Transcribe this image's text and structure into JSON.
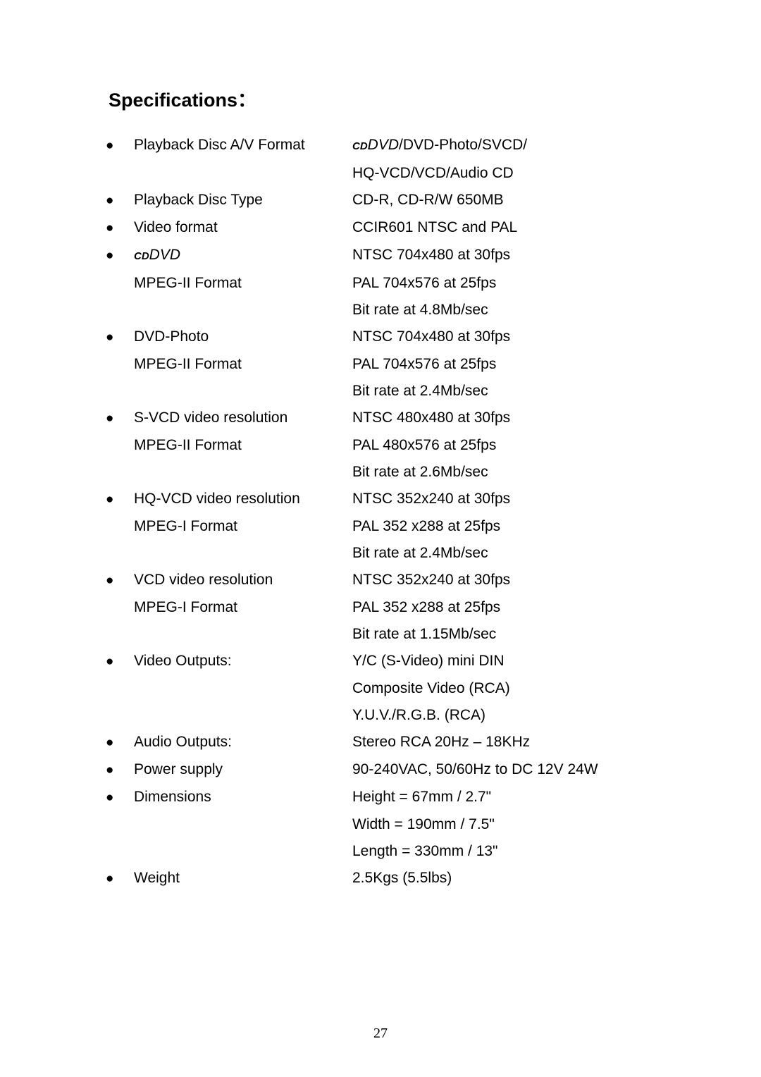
{
  "title": "Specifications：",
  "bullet_char": "●",
  "rows": [
    {
      "b": true,
      "l_html": " Playback Disc A/V Format",
      "r_html": "<span class='cd-small'>CD</span><span class='dvd-italic'>DVD</span>/DVD-Photo/SVCD/"
    },
    {
      "b": false,
      "l_html": "",
      "r_html": "HQ-VCD/VCD/Audio CD"
    },
    {
      "b": true,
      "l_html": " Playback Disc Type",
      "r_html": "CD-R, CD-R/W 650MB"
    },
    {
      "b": true,
      "l_html": " Video format",
      "r_html": "CCIR601 NTSC and PAL"
    },
    {
      "b": true,
      "l_html": " <span class='cd-small'>CD</span><span class='dvd-italic'>DVD</span>",
      "r_html": "NTSC 704x480 at 30fps"
    },
    {
      "b": false,
      "l_html": "MPEG-II Format",
      "r_html": "PAL 704x576 at 25fps"
    },
    {
      "b": false,
      "l_html": "",
      "r_html": "Bit rate at 4.8Mb/sec"
    },
    {
      "b": true,
      "l_html": "DVD-Photo",
      "r_html": "NTSC 704x480 at 30fps"
    },
    {
      "b": false,
      "l_html": "MPEG-II Format",
      "r_html": "PAL 704x576 at 25fps"
    },
    {
      "b": false,
      "l_html": "",
      "r_html": "Bit rate at 2.4Mb/sec"
    },
    {
      "b": true,
      "l_html": "S-VCD video resolution",
      "r_html": "NTSC 480x480 at 30fps"
    },
    {
      "b": false,
      "l_html": "MPEG-II Format",
      "r_html": "PAL 480x576 at 25fps"
    },
    {
      "b": false,
      "l_html": "",
      "r_html": "Bit rate at 2.6Mb/sec"
    },
    {
      "b": true,
      "l_html": "HQ-VCD video resolution",
      "r_html": "NTSC 352x240 at 30fps"
    },
    {
      "b": false,
      "l_html": "MPEG-I Format",
      "r_html": "PAL 352 x288 at 25fps"
    },
    {
      "b": false,
      "l_html": "",
      "r_html": "Bit rate at 2.4Mb/sec"
    },
    {
      "b": true,
      "l_html": "VCD video resolution",
      "r_html": "NTSC 352x240 at 30fps"
    },
    {
      "b": false,
      "l_html": "MPEG-I Format",
      "r_html": "PAL 352 x288 at 25fps"
    },
    {
      "b": false,
      "l_html": "",
      "r_html": "Bit rate at 1.15Mb/sec"
    },
    {
      "b": true,
      "l_html": " Video Outputs:",
      "r_html": "Y/C (S-Video) mini DIN"
    },
    {
      "b": false,
      "l_html": "",
      "r_html": "Composite Video (RCA)"
    },
    {
      "b": false,
      "l_html": "",
      "r_html": "Y.U.V./R.G.B. (RCA)"
    },
    {
      "b": true,
      "l_html": " Audio Outputs:",
      "r_html": "Stereo RCA 20Hz – 18KHz"
    },
    {
      "b": true,
      "l_html": " Power supply",
      "r_html": "90-240VAC, 50/60Hz to DC 12V 24W"
    },
    {
      "b": true,
      "l_html": " Dimensions",
      "r_html": "Height = 67mm / 2.7\""
    },
    {
      "b": false,
      "l_html": "",
      "r_html": "Width = 190mm / 7.5\""
    },
    {
      "b": false,
      "l_html": "",
      "r_html": "Length = 330mm / 13\""
    },
    {
      "b": true,
      "l_html": "  Weight",
      "r_html": "2.5Kgs (5.5lbs)"
    }
  ],
  "pagenum": "27"
}
